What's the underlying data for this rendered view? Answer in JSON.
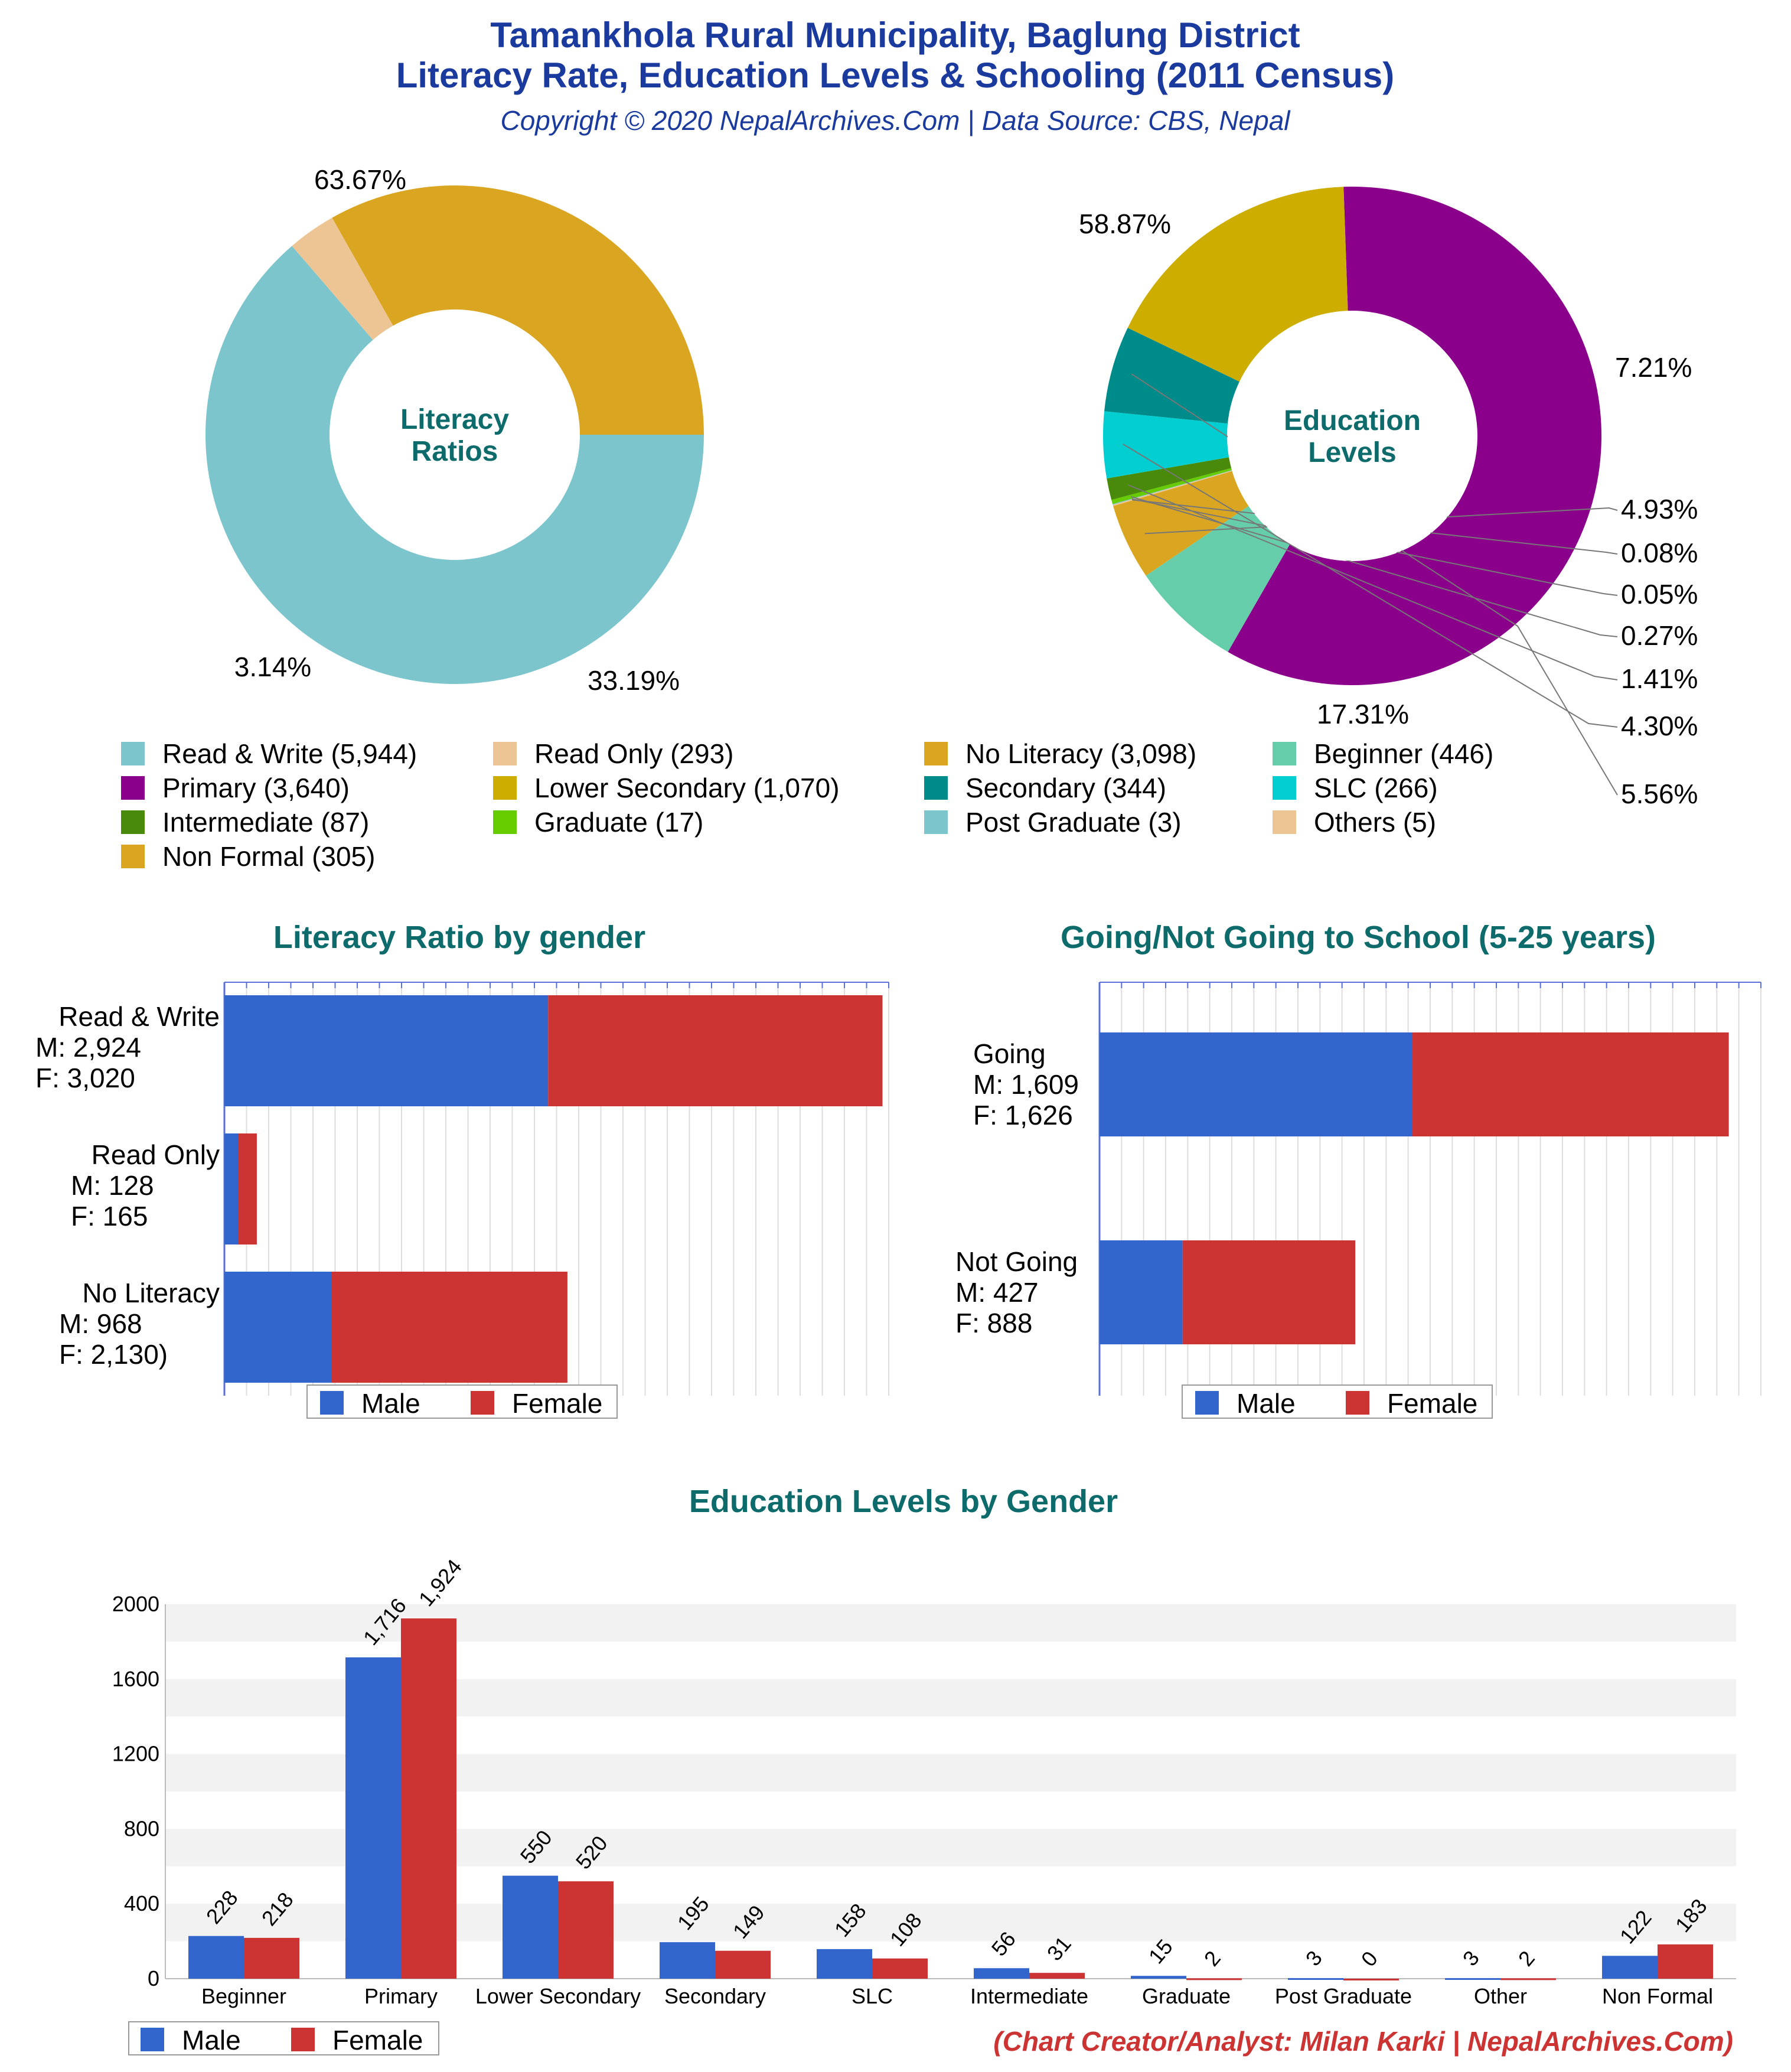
{
  "header": {
    "title_line1": "Tamankhola Rural Municipality, Baglung District",
    "title_line2": "Literacy Rate, Education Levels & Schooling (2011 Census)",
    "subtitle": "Copyright © 2020 NepalArchives.Com | Data Source: CBS, Nepal"
  },
  "footer": {
    "credit": "(Chart Creator/Analyst: Milan Karki | NepalArchives.Com)"
  },
  "colors": {
    "title": "#1a3a9e",
    "section_title": "#0d6b6b",
    "male": "#3366cc",
    "female": "#cc3333",
    "credit": "#cc3333"
  },
  "chart_data": [
    {
      "type": "pie",
      "variant": "donut",
      "center_label": [
        "Literacy",
        "Ratios"
      ],
      "slices": [
        {
          "label": "Read & Write",
          "value": 5944,
          "percent_label": "63.67%",
          "color": "#7cc5cd"
        },
        {
          "label": "Read Only",
          "value": 293,
          "percent_label": "3.14%",
          "color": "#edc594"
        },
        {
          "label": "No Literacy",
          "value": 3098,
          "percent_label": "33.19%",
          "color": "#daa520"
        }
      ]
    },
    {
      "type": "pie",
      "variant": "donut",
      "center_label": [
        "Education",
        "Levels"
      ],
      "slices": [
        {
          "label": "Primary",
          "value": 3640,
          "percent_label": "58.87%",
          "color": "#8b008b"
        },
        {
          "label": "Beginner",
          "value": 446,
          "percent_label": "7.21%",
          "color": "#66cdaa"
        },
        {
          "label": "Non Formal",
          "value": 305,
          "percent_label": "4.93%",
          "color": "#daa520"
        },
        {
          "label": "Others",
          "value": 5,
          "percent_label": "0.08%",
          "color": "#edc594"
        },
        {
          "label": "Post Graduate",
          "value": 3,
          "percent_label": "0.05%",
          "color": "#7cc5cd"
        },
        {
          "label": "Graduate",
          "value": 17,
          "percent_label": "0.27%",
          "color": "#66cc00"
        },
        {
          "label": "Intermediate",
          "value": 87,
          "percent_label": "1.41%",
          "color": "#4a8a0a"
        },
        {
          "label": "SLC",
          "value": 266,
          "percent_label": "4.30%",
          "color": "#00ced1"
        },
        {
          "label": "Secondary",
          "value": 344,
          "percent_label": "5.56%",
          "color": "#008b8b"
        },
        {
          "label": "Lower Secondary",
          "value": 1070,
          "percent_label": "17.31%",
          "color": "#ccad00"
        }
      ]
    },
    {
      "type": "bar",
      "orientation": "horizontal",
      "stacked": true,
      "title": "Literacy Ratio by gender",
      "categories": [
        {
          "lines": [
            "Read & Write",
            "M: 2,924",
            "F: 3,020"
          ]
        },
        {
          "lines": [
            "Read Only",
            "M: 128",
            "F: 165"
          ]
        },
        {
          "lines": [
            "No Literacy",
            "M: 968",
            "F: 2,130)"
          ]
        }
      ],
      "series": [
        {
          "name": "Male",
          "values": [
            2924,
            128,
            968
          ]
        },
        {
          "name": "Female",
          "values": [
            3020,
            165,
            2130
          ]
        }
      ],
      "xlim": [
        0,
        6000
      ],
      "grid": true,
      "legend": "bottom"
    },
    {
      "type": "bar",
      "orientation": "horizontal",
      "stacked": true,
      "title": "Going/Not Going to School (5-25 years)",
      "categories": [
        {
          "lines": [
            "Going",
            "M: 1,609",
            "F: 1,626"
          ]
        },
        {
          "lines": [
            "Not Going",
            "M: 427",
            "F: 888"
          ]
        }
      ],
      "series": [
        {
          "name": "Male",
          "values": [
            1609,
            427
          ]
        },
        {
          "name": "Female",
          "values": [
            1626,
            888
          ]
        }
      ],
      "xlim": [
        0,
        3400
      ],
      "grid": true,
      "legend": "bottom"
    },
    {
      "type": "bar",
      "orientation": "vertical",
      "stacked": false,
      "title": "Education Levels by Gender",
      "categories": [
        "Beginner",
        "Primary",
        "Lower Secondary",
        "Secondary",
        "SLC",
        "Intermediate",
        "Graduate",
        "Post Graduate",
        "Other",
        "Non Formal"
      ],
      "series": [
        {
          "name": "Male",
          "values": [
            228,
            1716,
            550,
            195,
            158,
            56,
            15,
            3,
            3,
            122
          ],
          "labels": [
            "228",
            "1,716",
            "550",
            "195",
            "158",
            "56",
            "15",
            "3",
            "3",
            "122"
          ]
        },
        {
          "name": "Female",
          "values": [
            218,
            1924,
            520,
            149,
            108,
            31,
            2,
            0,
            2,
            183
          ],
          "labels": [
            "218",
            "1,924",
            "520",
            "149",
            "108",
            "31",
            "2",
            "0",
            "2",
            "183"
          ]
        }
      ],
      "yticks": [
        "0",
        "400",
        "800",
        "1200",
        "1600",
        "2000"
      ],
      "ylim": [
        0,
        2000
      ],
      "grid": true,
      "legend": "bottom-left"
    }
  ]
}
